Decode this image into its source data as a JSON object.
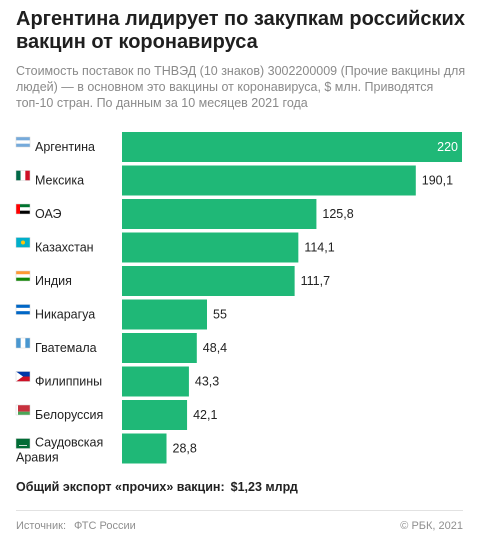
{
  "title": "Аргентина лидирует по закупкам российских вакцин от коронавируса",
  "subtitle": "Стоимость поставок по ТНВЭД (10 знаков) 3002200009 (Прочие вакцины для людей) — в основном это вакцины от коронавируса, $ млн. Приводятся топ-10 стран. По данным за 10 месяцев 2021 года",
  "chart_data": {
    "type": "bar",
    "orientation": "horizontal",
    "categories": [
      "Аргентина",
      "Мексика",
      "ОАЭ",
      "Казахстан",
      "Индия",
      "Никарагуа",
      "Гватемала",
      "Филиппины",
      "Белоруссия",
      "Саудовская Аравия"
    ],
    "values": [
      220,
      190.1,
      125.8,
      114.1,
      111.7,
      55,
      48.4,
      43.3,
      42.1,
      28.8
    ],
    "value_labels": [
      "220",
      "190,1",
      "125,8",
      "114,1",
      "111,7",
      "55",
      "48,4",
      "43,3",
      "42,1",
      "28,8"
    ],
    "flag_icons": [
      "flag-argentina-icon",
      "flag-mexico-icon",
      "flag-uae-icon",
      "flag-kazakhstan-icon",
      "flag-india-icon",
      "flag-nicaragua-icon",
      "flag-guatemala-icon",
      "flag-philippines-icon",
      "flag-belarus-icon",
      "flag-saudi-arabia-icon"
    ],
    "xlim": [
      0,
      220
    ],
    "grid": false,
    "bar_color": "#1fb877"
  },
  "total": {
    "label": "Общий экспорт «прочих» вакцин:",
    "value": "$1,23 млрд"
  },
  "footer": {
    "source_label": "Источник:",
    "source_value": "ФТС России",
    "credit": "© РБК, 2021"
  }
}
